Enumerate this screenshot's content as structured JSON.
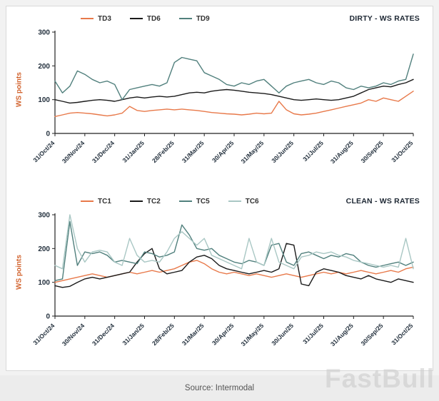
{
  "footer": {
    "source": "Source: Intermodal",
    "watermark": "FastBull"
  },
  "chart_data": [
    {
      "type": "line",
      "title": "DIRTY - WS RATES",
      "ylabel": "WS points",
      "ylim": [
        0,
        300
      ],
      "yticks": [
        0,
        100,
        200,
        300
      ],
      "grid": false,
      "legend_position": "top",
      "x_labels": [
        "31/Oct/24",
        "30/Nov/24",
        "31/Dec/24",
        "31/Jan/25",
        "28/Feb/25",
        "31/Mar/25",
        "30/Apr/25",
        "31/May/25",
        "30/Jun/25",
        "31/Jul/25",
        "31/Aug/25",
        "30/Sep/25",
        "31/Oct/25"
      ],
      "series": [
        {
          "name": "TD3",
          "color": "#e8794a",
          "values": [
            50,
            55,
            60,
            62,
            60,
            58,
            55,
            52,
            55,
            60,
            80,
            68,
            65,
            68,
            70,
            72,
            70,
            72,
            70,
            68,
            65,
            62,
            60,
            58,
            57,
            55,
            57,
            60,
            58,
            60,
            95,
            70,
            58,
            55,
            57,
            60,
            65,
            70,
            75,
            80,
            85,
            90,
            100,
            95,
            105,
            100,
            95,
            110,
            125
          ]
        },
        {
          "name": "TD6",
          "color": "#1a1a1a",
          "values": [
            100,
            95,
            90,
            92,
            95,
            98,
            100,
            98,
            95,
            100,
            105,
            108,
            105,
            108,
            110,
            108,
            110,
            115,
            120,
            122,
            120,
            125,
            128,
            130,
            128,
            125,
            122,
            120,
            118,
            115,
            110,
            105,
            100,
            98,
            100,
            102,
            100,
            98,
            100,
            105,
            110,
            120,
            130,
            135,
            140,
            138,
            145,
            150,
            160
          ]
        },
        {
          "name": "TD9",
          "color": "#51807d",
          "values": [
            155,
            120,
            140,
            185,
            175,
            160,
            150,
            155,
            145,
            100,
            130,
            135,
            140,
            145,
            140,
            150,
            210,
            225,
            220,
            215,
            180,
            170,
            160,
            145,
            140,
            150,
            145,
            155,
            160,
            140,
            120,
            140,
            150,
            155,
            160,
            150,
            145,
            155,
            150,
            135,
            130,
            140,
            135,
            140,
            150,
            145,
            155,
            160,
            235
          ]
        }
      ]
    },
    {
      "type": "line",
      "title": "CLEAN - WS RATES",
      "ylabel": "WS points",
      "ylim": [
        0,
        300
      ],
      "yticks": [
        0,
        100,
        200,
        300
      ],
      "grid": false,
      "legend_position": "top",
      "x_labels": [
        "31/Oct/24",
        "30/Nov/24",
        "31/Dec/24",
        "31/Jan/25",
        "28/Feb/25",
        "31/Mar/25",
        "30/Apr/25",
        "31/May/25",
        "30/Jun/25",
        "31/Jul/25",
        "31/Aug/25",
        "30/Sep/25",
        "31/Oct/25"
      ],
      "series": [
        {
          "name": "TC1",
          "color": "#e8794a",
          "values": [
            100,
            105,
            110,
            115,
            120,
            125,
            120,
            115,
            120,
            125,
            130,
            125,
            130,
            135,
            130,
            135,
            140,
            150,
            160,
            165,
            155,
            140,
            130,
            125,
            130,
            125,
            120,
            125,
            120,
            115,
            120,
            125,
            120,
            115,
            120,
            125,
            130,
            125,
            130,
            125,
            130,
            135,
            130,
            125,
            130,
            135,
            130,
            140,
            145
          ]
        },
        {
          "name": "TC2",
          "color": "#1a1a1a",
          "values": [
            90,
            85,
            88,
            100,
            110,
            115,
            110,
            115,
            120,
            125,
            130,
            160,
            185,
            200,
            140,
            125,
            130,
            135,
            160,
            175,
            180,
            170,
            150,
            140,
            135,
            130,
            125,
            130,
            135,
            130,
            140,
            215,
            210,
            95,
            90,
            130,
            140,
            135,
            130,
            120,
            115,
            110,
            120,
            110,
            105,
            100,
            110,
            105,
            100
          ]
        },
        {
          "name": "TC5",
          "color": "#51807d",
          "values": [
            105,
            110,
            280,
            150,
            190,
            185,
            190,
            180,
            160,
            165,
            160,
            155,
            190,
            185,
            175,
            180,
            190,
            270,
            240,
            200,
            195,
            200,
            180,
            170,
            160,
            155,
            165,
            160,
            150,
            210,
            215,
            160,
            150,
            185,
            190,
            180,
            170,
            180,
            175,
            185,
            180,
            160,
            150,
            145,
            150,
            155,
            160,
            150,
            160
          ]
        },
        {
          "name": "TC6",
          "color": "#a9c7c4",
          "values": [
            150,
            140,
            300,
            200,
            160,
            190,
            195,
            190,
            160,
            150,
            230,
            180,
            160,
            165,
            160,
            190,
            230,
            250,
            230,
            210,
            230,
            180,
            170,
            160,
            150,
            140,
            230,
            160,
            150,
            230,
            160,
            150,
            140,
            175,
            180,
            190,
            185,
            190,
            180,
            175,
            165,
            160,
            155,
            150,
            145,
            150,
            145,
            230,
            140
          ]
        }
      ]
    }
  ]
}
